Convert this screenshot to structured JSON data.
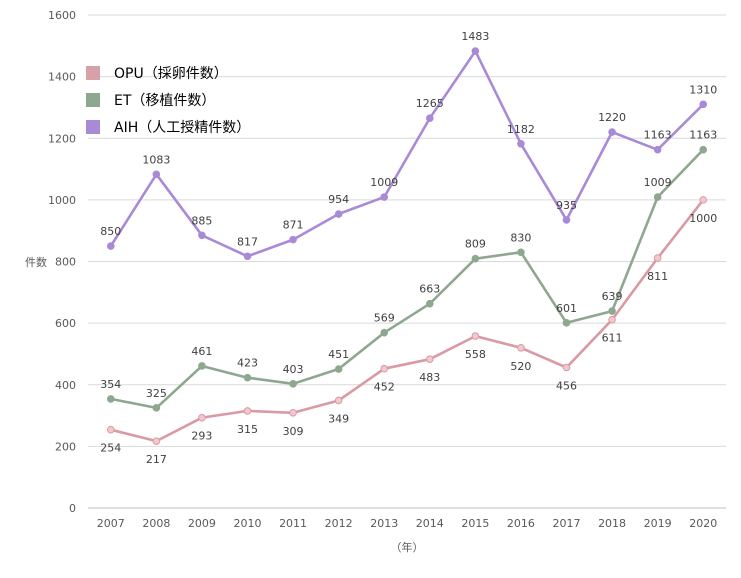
{
  "chart_data": {
    "type": "line",
    "title": "",
    "xlabel": "（年）",
    "ylabel": "件数",
    "categories": [
      "2007",
      "2008",
      "2009",
      "2010",
      "2011",
      "2012",
      "2013",
      "2014",
      "2015",
      "2016",
      "2017",
      "2018",
      "2019",
      "2020"
    ],
    "ylim": [
      0,
      1600
    ],
    "yticks": [
      0,
      200,
      400,
      600,
      800,
      1000,
      1200,
      1400,
      1600
    ],
    "grid": true,
    "legend_position": "top-left",
    "series": [
      {
        "name": "OPU（採卵件数）",
        "color": "#d99aa3",
        "marker_fill": "#f2c8cc",
        "label_position": "below",
        "values": [
          254,
          217,
          293,
          315,
          309,
          349,
          452,
          483,
          558,
          520,
          456,
          611,
          811,
          1000
        ]
      },
      {
        "name": "ET（移植件数）",
        "color": "#8ea88f",
        "marker_fill": "#8ea88f",
        "label_position": "above",
        "values": [
          354,
          325,
          461,
          423,
          403,
          451,
          569,
          663,
          809,
          830,
          601,
          639,
          1009,
          1163
        ]
      },
      {
        "name": "AIH（人工授精件数）",
        "color": "#a98ad7",
        "marker_fill": "#a98ad7",
        "label_position": "above",
        "values": [
          850,
          1083,
          885,
          817,
          871,
          954,
          1009,
          1265,
          1483,
          1182,
          935,
          1220,
          1163,
          1310
        ]
      }
    ]
  }
}
